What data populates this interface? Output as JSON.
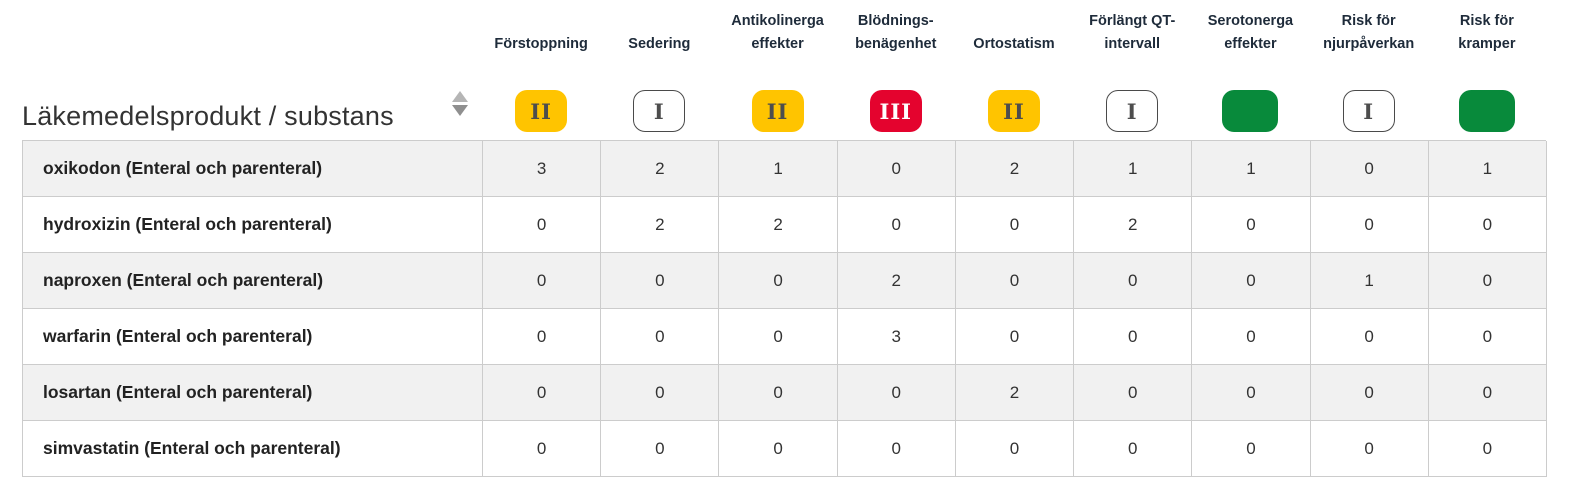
{
  "table": {
    "title": "Läkemedelsprodukt / substans",
    "columns": [
      {
        "label": "Förstoppning",
        "badge": {
          "type": "yellow",
          "text": "II",
          "level": "risk-class-2"
        }
      },
      {
        "label": "Sedering",
        "badge": {
          "type": "outline",
          "text": "I",
          "level": "risk-class-1"
        }
      },
      {
        "label": "Antikolinerga effekter",
        "badge": {
          "type": "yellow",
          "text": "II",
          "level": "risk-class-2"
        }
      },
      {
        "label": "Blödnings-benägenhet",
        "badge": {
          "type": "red",
          "text": "III",
          "level": "risk-class-3"
        }
      },
      {
        "label": "Ortostatism",
        "badge": {
          "type": "yellow",
          "text": "II",
          "level": "risk-class-2"
        }
      },
      {
        "label": "Förlängt QT-intervall",
        "badge": {
          "type": "outline",
          "text": "I",
          "level": "risk-class-1"
        }
      },
      {
        "label": "Serotonerga effekter",
        "badge": {
          "type": "green",
          "text": "",
          "level": "risk-class-0"
        }
      },
      {
        "label": "Risk för njurpåverkan",
        "badge": {
          "type": "outline",
          "text": "I",
          "level": "risk-class-1"
        }
      },
      {
        "label": "Risk för kramper",
        "badge": {
          "type": "green",
          "text": "",
          "level": "risk-class-0"
        }
      }
    ],
    "rows": [
      {
        "label": "oxikodon (Enteral och parenteral)",
        "values": [
          3,
          2,
          1,
          0,
          2,
          1,
          1,
          0,
          1
        ]
      },
      {
        "label": "hydroxizin (Enteral och parenteral)",
        "values": [
          0,
          2,
          2,
          0,
          0,
          2,
          0,
          0,
          0
        ]
      },
      {
        "label": "naproxen (Enteral och parenteral)",
        "values": [
          0,
          0,
          0,
          2,
          0,
          0,
          0,
          1,
          0
        ]
      },
      {
        "label": "warfarin (Enteral och parenteral)",
        "values": [
          0,
          0,
          0,
          3,
          0,
          0,
          0,
          0,
          0
        ]
      },
      {
        "label": "losartan (Enteral och parenteral)",
        "values": [
          0,
          0,
          0,
          0,
          2,
          0,
          0,
          0,
          0
        ]
      },
      {
        "label": "simvastatin (Enteral och parenteral)",
        "values": [
          0,
          0,
          0,
          0,
          0,
          0,
          0,
          0,
          0
        ]
      }
    ]
  },
  "icons": {
    "title_sort": "sort-arrows-icon"
  },
  "colors": {
    "badge_yellow": "#ffc400",
    "badge_red": "#e4032e",
    "badge_green": "#088a3b",
    "badge_outline_border": "#4a4a4a",
    "badge_text_dark": "#4d4d4d",
    "header_text": "#1e2b3a",
    "row_alt_background": "#f1f1f1",
    "grid_border": "#cccccc",
    "sort_icon_gray": "#a3a3a3"
  }
}
